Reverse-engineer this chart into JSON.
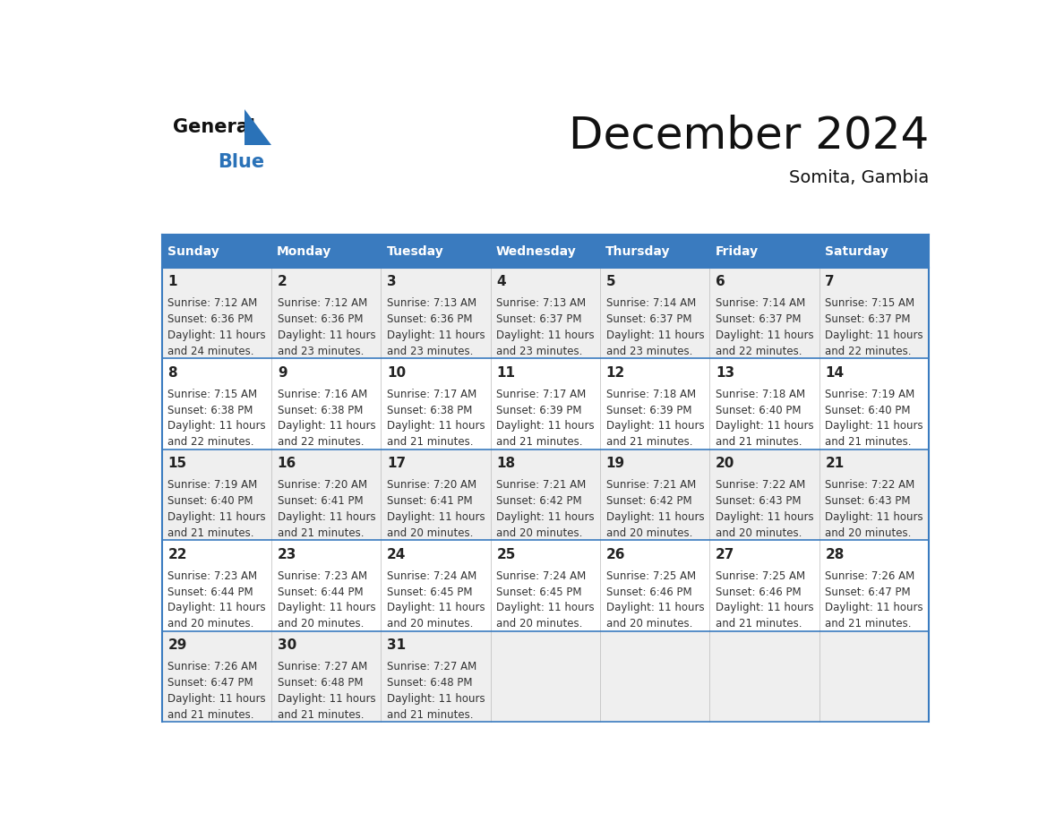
{
  "title": "December 2024",
  "subtitle": "Somita, Gambia",
  "header_bg": "#3a7bbf",
  "header_text_color": "#ffffff",
  "cell_bg_odd": "#efefef",
  "cell_bg_even": "#ffffff",
  "border_color": "#3a7bbf",
  "text_color": "#333333",
  "day_number_color": "#222222",
  "day_names": [
    "Sunday",
    "Monday",
    "Tuesday",
    "Wednesday",
    "Thursday",
    "Friday",
    "Saturday"
  ],
  "days": [
    {
      "day": 1,
      "col": 0,
      "row": 0,
      "sunrise": "7:12 AM",
      "sunset": "6:36 PM",
      "dl1": "Daylight: 11 hours",
      "dl2": "and 24 minutes."
    },
    {
      "day": 2,
      "col": 1,
      "row": 0,
      "sunrise": "7:12 AM",
      "sunset": "6:36 PM",
      "dl1": "Daylight: 11 hours",
      "dl2": "and 23 minutes."
    },
    {
      "day": 3,
      "col": 2,
      "row": 0,
      "sunrise": "7:13 AM",
      "sunset": "6:36 PM",
      "dl1": "Daylight: 11 hours",
      "dl2": "and 23 minutes."
    },
    {
      "day": 4,
      "col": 3,
      "row": 0,
      "sunrise": "7:13 AM",
      "sunset": "6:37 PM",
      "dl1": "Daylight: 11 hours",
      "dl2": "and 23 minutes."
    },
    {
      "day": 5,
      "col": 4,
      "row": 0,
      "sunrise": "7:14 AM",
      "sunset": "6:37 PM",
      "dl1": "Daylight: 11 hours",
      "dl2": "and 23 minutes."
    },
    {
      "day": 6,
      "col": 5,
      "row": 0,
      "sunrise": "7:14 AM",
      "sunset": "6:37 PM",
      "dl1": "Daylight: 11 hours",
      "dl2": "and 22 minutes."
    },
    {
      "day": 7,
      "col": 6,
      "row": 0,
      "sunrise": "7:15 AM",
      "sunset": "6:37 PM",
      "dl1": "Daylight: 11 hours",
      "dl2": "and 22 minutes."
    },
    {
      "day": 8,
      "col": 0,
      "row": 1,
      "sunrise": "7:15 AM",
      "sunset": "6:38 PM",
      "dl1": "Daylight: 11 hours",
      "dl2": "and 22 minutes."
    },
    {
      "day": 9,
      "col": 1,
      "row": 1,
      "sunrise": "7:16 AM",
      "sunset": "6:38 PM",
      "dl1": "Daylight: 11 hours",
      "dl2": "and 22 minutes."
    },
    {
      "day": 10,
      "col": 2,
      "row": 1,
      "sunrise": "7:17 AM",
      "sunset": "6:38 PM",
      "dl1": "Daylight: 11 hours",
      "dl2": "and 21 minutes."
    },
    {
      "day": 11,
      "col": 3,
      "row": 1,
      "sunrise": "7:17 AM",
      "sunset": "6:39 PM",
      "dl1": "Daylight: 11 hours",
      "dl2": "and 21 minutes."
    },
    {
      "day": 12,
      "col": 4,
      "row": 1,
      "sunrise": "7:18 AM",
      "sunset": "6:39 PM",
      "dl1": "Daylight: 11 hours",
      "dl2": "and 21 minutes."
    },
    {
      "day": 13,
      "col": 5,
      "row": 1,
      "sunrise": "7:18 AM",
      "sunset": "6:40 PM",
      "dl1": "Daylight: 11 hours",
      "dl2": "and 21 minutes."
    },
    {
      "day": 14,
      "col": 6,
      "row": 1,
      "sunrise": "7:19 AM",
      "sunset": "6:40 PM",
      "dl1": "Daylight: 11 hours",
      "dl2": "and 21 minutes."
    },
    {
      "day": 15,
      "col": 0,
      "row": 2,
      "sunrise": "7:19 AM",
      "sunset": "6:40 PM",
      "dl1": "Daylight: 11 hours",
      "dl2": "and 21 minutes."
    },
    {
      "day": 16,
      "col": 1,
      "row": 2,
      "sunrise": "7:20 AM",
      "sunset": "6:41 PM",
      "dl1": "Daylight: 11 hours",
      "dl2": "and 21 minutes."
    },
    {
      "day": 17,
      "col": 2,
      "row": 2,
      "sunrise": "7:20 AM",
      "sunset": "6:41 PM",
      "dl1": "Daylight: 11 hours",
      "dl2": "and 20 minutes."
    },
    {
      "day": 18,
      "col": 3,
      "row": 2,
      "sunrise": "7:21 AM",
      "sunset": "6:42 PM",
      "dl1": "Daylight: 11 hours",
      "dl2": "and 20 minutes."
    },
    {
      "day": 19,
      "col": 4,
      "row": 2,
      "sunrise": "7:21 AM",
      "sunset": "6:42 PM",
      "dl1": "Daylight: 11 hours",
      "dl2": "and 20 minutes."
    },
    {
      "day": 20,
      "col": 5,
      "row": 2,
      "sunrise": "7:22 AM",
      "sunset": "6:43 PM",
      "dl1": "Daylight: 11 hours",
      "dl2": "and 20 minutes."
    },
    {
      "day": 21,
      "col": 6,
      "row": 2,
      "sunrise": "7:22 AM",
      "sunset": "6:43 PM",
      "dl1": "Daylight: 11 hours",
      "dl2": "and 20 minutes."
    },
    {
      "day": 22,
      "col": 0,
      "row": 3,
      "sunrise": "7:23 AM",
      "sunset": "6:44 PM",
      "dl1": "Daylight: 11 hours",
      "dl2": "and 20 minutes."
    },
    {
      "day": 23,
      "col": 1,
      "row": 3,
      "sunrise": "7:23 AM",
      "sunset": "6:44 PM",
      "dl1": "Daylight: 11 hours",
      "dl2": "and 20 minutes."
    },
    {
      "day": 24,
      "col": 2,
      "row": 3,
      "sunrise": "7:24 AM",
      "sunset": "6:45 PM",
      "dl1": "Daylight: 11 hours",
      "dl2": "and 20 minutes."
    },
    {
      "day": 25,
      "col": 3,
      "row": 3,
      "sunrise": "7:24 AM",
      "sunset": "6:45 PM",
      "dl1": "Daylight: 11 hours",
      "dl2": "and 20 minutes."
    },
    {
      "day": 26,
      "col": 4,
      "row": 3,
      "sunrise": "7:25 AM",
      "sunset": "6:46 PM",
      "dl1": "Daylight: 11 hours",
      "dl2": "and 20 minutes."
    },
    {
      "day": 27,
      "col": 5,
      "row": 3,
      "sunrise": "7:25 AM",
      "sunset": "6:46 PM",
      "dl1": "Daylight: 11 hours",
      "dl2": "and 21 minutes."
    },
    {
      "day": 28,
      "col": 6,
      "row": 3,
      "sunrise": "7:26 AM",
      "sunset": "6:47 PM",
      "dl1": "Daylight: 11 hours",
      "dl2": "and 21 minutes."
    },
    {
      "day": 29,
      "col": 0,
      "row": 4,
      "sunrise": "7:26 AM",
      "sunset": "6:47 PM",
      "dl1": "Daylight: 11 hours",
      "dl2": "and 21 minutes."
    },
    {
      "day": 30,
      "col": 1,
      "row": 4,
      "sunrise": "7:27 AM",
      "sunset": "6:48 PM",
      "dl1": "Daylight: 11 hours",
      "dl2": "and 21 minutes."
    },
    {
      "day": 31,
      "col": 2,
      "row": 4,
      "sunrise": "7:27 AM",
      "sunset": "6:48 PM",
      "dl1": "Daylight: 11 hours",
      "dl2": "and 21 minutes."
    }
  ],
  "num_rows": 5,
  "num_cols": 7,
  "logo_general_color": "#111111",
  "logo_blue_color": "#2a72b8",
  "logo_triangle_color": "#2a72b8",
  "title_fontsize": 36,
  "subtitle_fontsize": 14,
  "header_fontsize": 10,
  "day_num_fontsize": 11,
  "cell_text_fontsize": 8.5
}
